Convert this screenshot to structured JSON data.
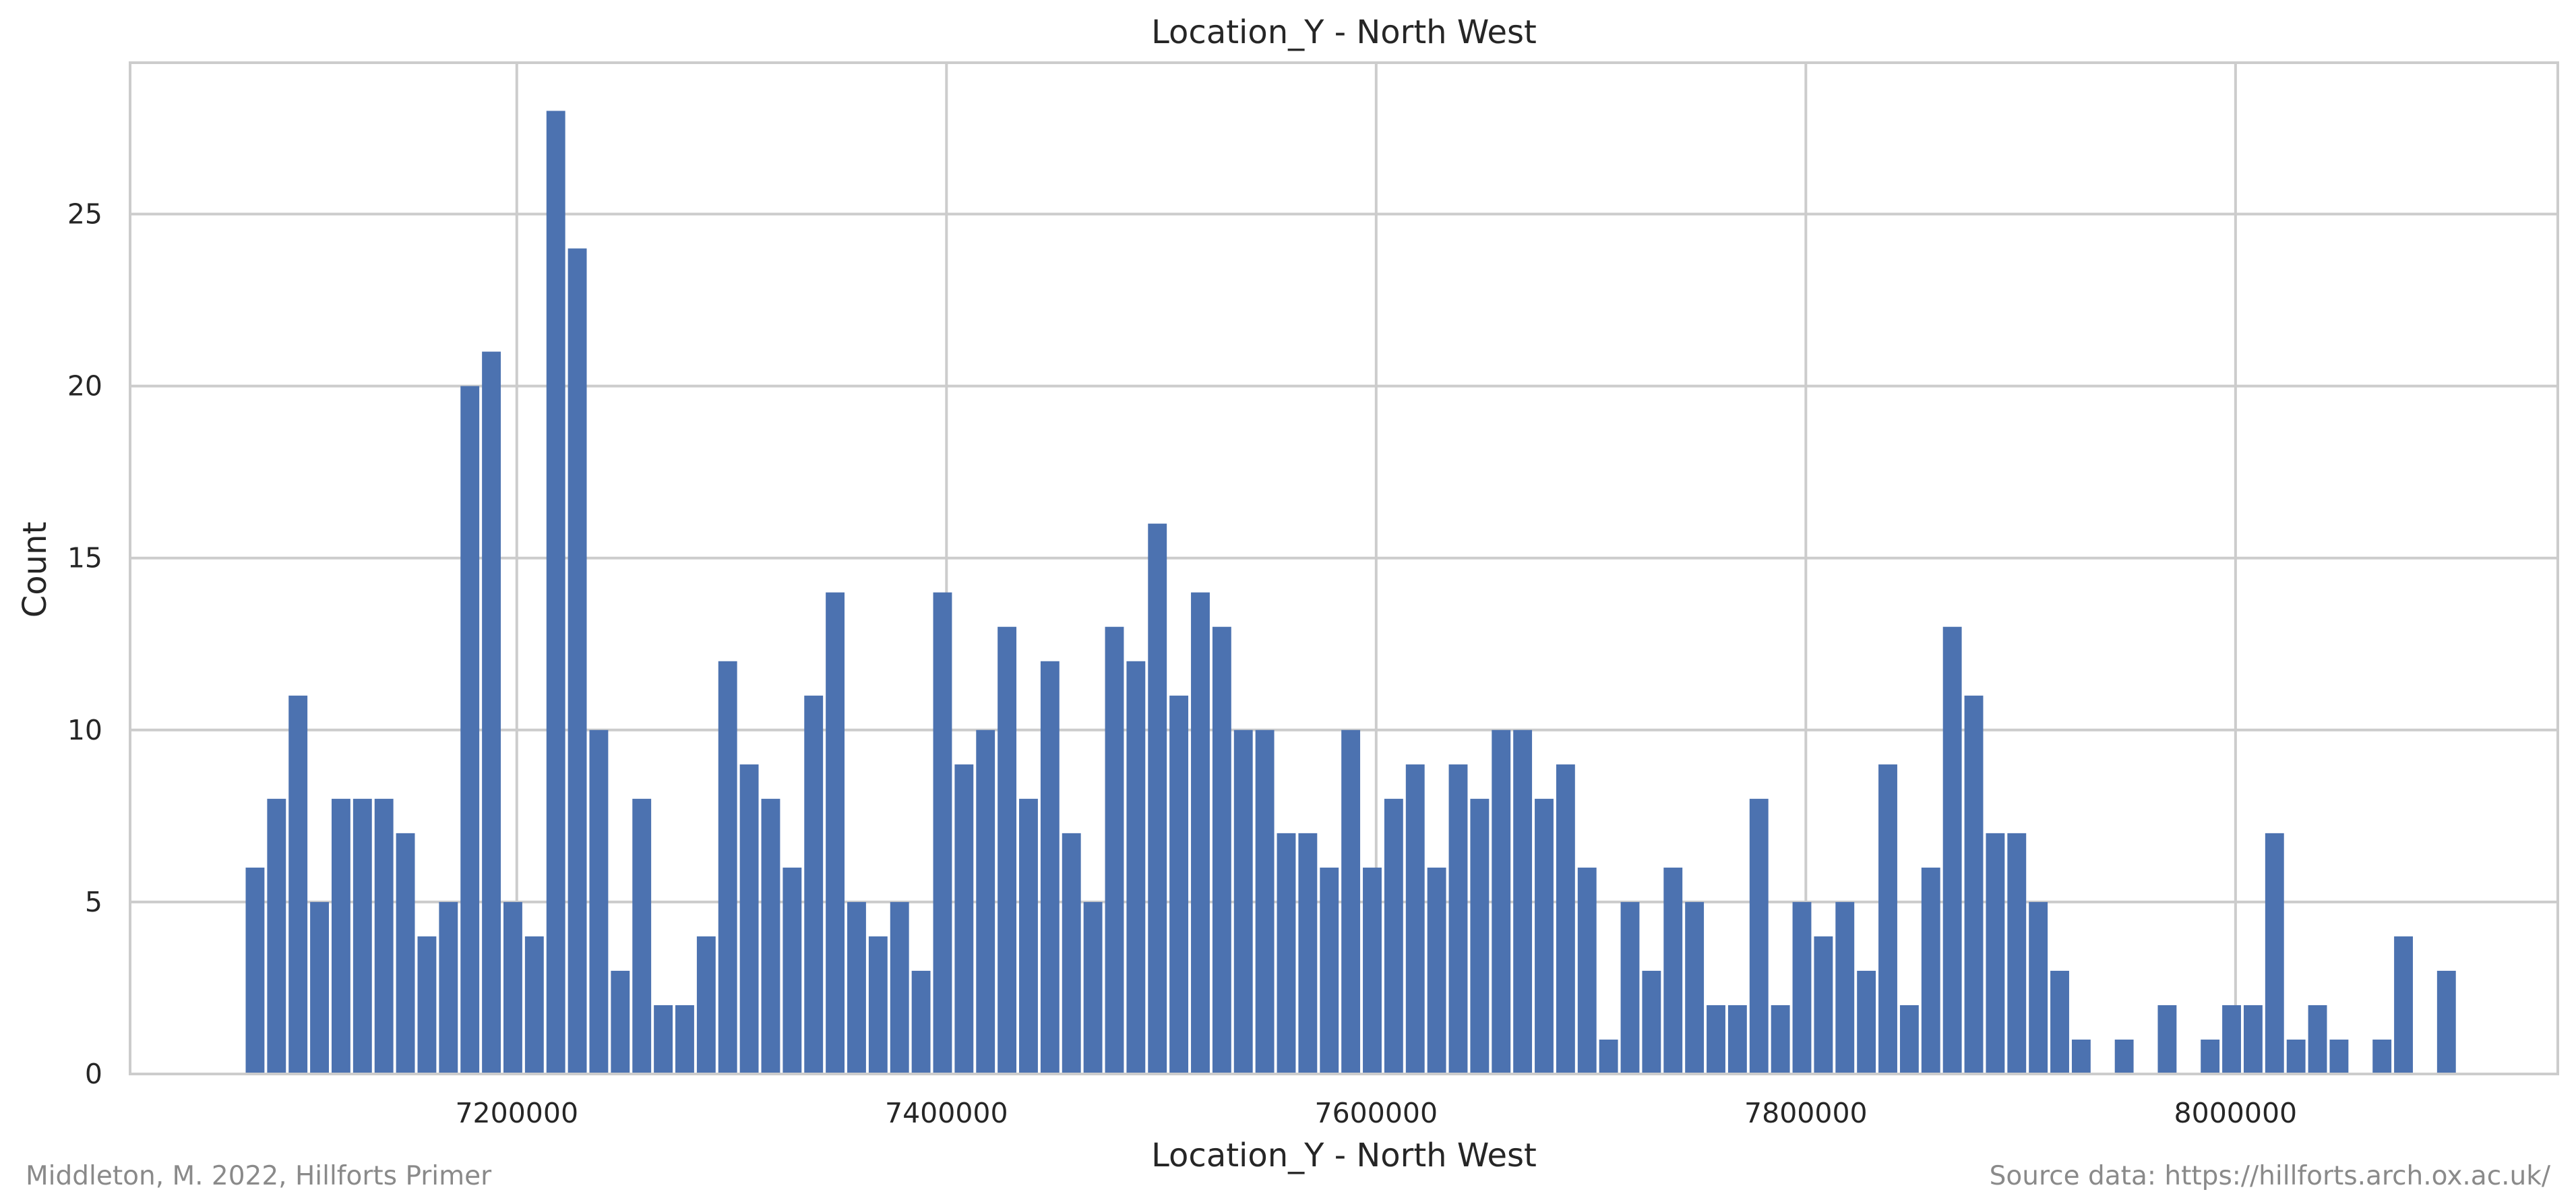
{
  "chart_data": {
    "type": "bar",
    "title": "Location_Y - North West",
    "xlabel": "Location_Y - North West",
    "ylabel": "Count",
    "xlim": [
      7020000,
      8150000
    ],
    "ylim": [
      0,
      29.4
    ],
    "bin_start": 7073800,
    "bin_width": 10000,
    "values": [
      6,
      8,
      11,
      5,
      8,
      8,
      8,
      7,
      4,
      5,
      20,
      21,
      5,
      4,
      28,
      24,
      10,
      3,
      8,
      2,
      2,
      4,
      12,
      9,
      8,
      6,
      11,
      14,
      5,
      4,
      5,
      3,
      14,
      9,
      10,
      13,
      8,
      12,
      7,
      5,
      13,
      12,
      16,
      11,
      14,
      13,
      10,
      10,
      7,
      7,
      6,
      10,
      6,
      8,
      9,
      6,
      9,
      8,
      10,
      10,
      8,
      9,
      6,
      1,
      5,
      3,
      6,
      5,
      2,
      2,
      8,
      2,
      5,
      4,
      5,
      3,
      9,
      2,
      6,
      13,
      11,
      7,
      7,
      5,
      3,
      1,
      0,
      1,
      0,
      2,
      0,
      1,
      2,
      2,
      7,
      1,
      2,
      1,
      0,
      1,
      4,
      0,
      3
    ],
    "x_ticks": [
      "7200000",
      "7400000",
      "7600000",
      "7800000",
      "8000000"
    ],
    "x_tick_values": [
      7200000,
      7400000,
      7600000,
      7800000,
      8000000
    ],
    "y_ticks": [
      "0",
      "5",
      "10",
      "15",
      "20",
      "25"
    ],
    "y_tick_values": [
      0,
      5,
      10,
      15,
      20,
      25
    ],
    "grid": true,
    "bar_color": "#4c72b0",
    "grid_color": "#cccccc"
  },
  "footer": {
    "credit": "Middleton, M. 2022, Hillforts Primer",
    "source": "Source data: https://hillforts.arch.ox.ac.uk/"
  }
}
